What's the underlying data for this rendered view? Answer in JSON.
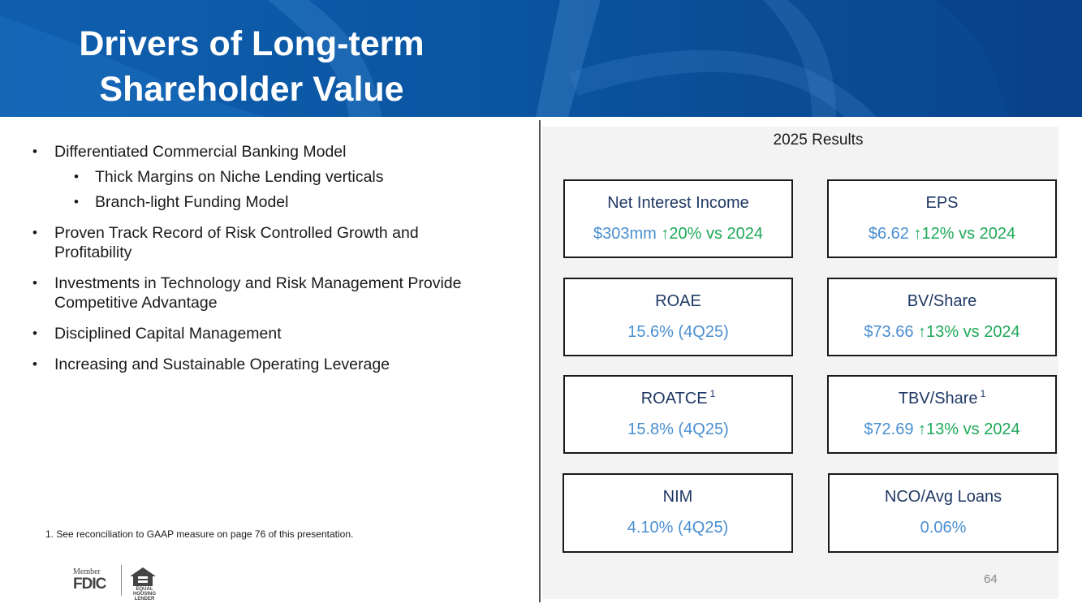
{
  "header": {
    "title_line1": "Drivers of Long-term",
    "title_line2": "Shareholder Value"
  },
  "bullets": [
    {
      "text": "Differentiated Commercial Banking Model",
      "level": 1
    },
    {
      "text": "Thick Margins on Niche Lending verticals",
      "level": 2
    },
    {
      "text": " Branch-light Funding Model",
      "level": 2
    },
    {
      "text": "Proven Track Record of Risk Controlled Growth and Profitability",
      "level": 1
    },
    {
      "text": "Investments in Technology and Risk Management Provide Competitive Advantage",
      "level": 1
    },
    {
      "text": "Disciplined Capital Management",
      "level": 1
    },
    {
      "text": "Increasing and Sustainable Operating Leverage",
      "level": 1
    }
  ],
  "footnote": "1.  See reconciliation to GAAP measure on page 76 of this presentation.",
  "logos": {
    "fdic_member": "Member",
    "fdic": "FDIC",
    "ehl": "EQUAL HOUSING LENDER"
  },
  "results": {
    "title": "2025 Results",
    "cards": [
      {
        "label": "Net Interest Income",
        "sup": "",
        "value": "$303mm",
        "change": "↑20% vs 2024"
      },
      {
        "label": "EPS",
        "sup": "",
        "value": "$6.62",
        "change": "↑12% vs 2024"
      },
      {
        "label": "ROAE",
        "sup": "",
        "value": "15.6% (4Q25)",
        "change": ""
      },
      {
        "label": "BV/Share",
        "sup": "",
        "value": "$73.66",
        "change": "↑13% vs 2024"
      },
      {
        "label": "ROATCE",
        "sup": "1",
        "value": "15.8% (4Q25)",
        "change": ""
      },
      {
        "label": "TBV/Share",
        "sup": "1",
        "value": "$72.69",
        "change": "↑13% vs 2024"
      },
      {
        "label": "NIM",
        "sup": "",
        "value": "4.10% (4Q25)",
        "change": ""
      },
      {
        "label": "NCO/Avg Loans",
        "sup": "",
        "value": "0.06%",
        "change": ""
      }
    ]
  },
  "page_number": "64",
  "colors": {
    "header_blue": "#0b56a3",
    "label_navy": "#1f3864",
    "value_blue": "#4a8fd0",
    "change_green": "#1fa858"
  }
}
